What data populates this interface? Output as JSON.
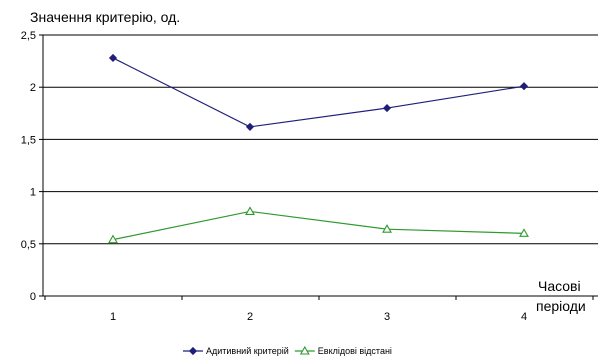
{
  "chart_data": {
    "type": "line",
    "ylabel": "Значення критерію, од.",
    "xlabel_lines": [
      "Часові",
      "періоди"
    ],
    "categories": [
      "1",
      "2",
      "3",
      "4"
    ],
    "ylim": [
      0,
      2.5
    ],
    "yticks": [
      "0",
      "0,5",
      "1",
      "1,5",
      "2",
      "2,5"
    ],
    "ytick_values": [
      0,
      0.5,
      1,
      1.5,
      2,
      2.5
    ],
    "grid": "horizontal",
    "legend_position": "bottom",
    "series": [
      {
        "name": "Адитивний критерій",
        "values": [
          2.28,
          1.62,
          1.8,
          2.01
        ],
        "color": "#1f1f7a",
        "marker": "diamond"
      },
      {
        "name": "Евклідові відстані",
        "values": [
          0.54,
          0.81,
          0.64,
          0.6
        ],
        "color": "#2e9a2e",
        "marker": "triangle"
      }
    ]
  }
}
